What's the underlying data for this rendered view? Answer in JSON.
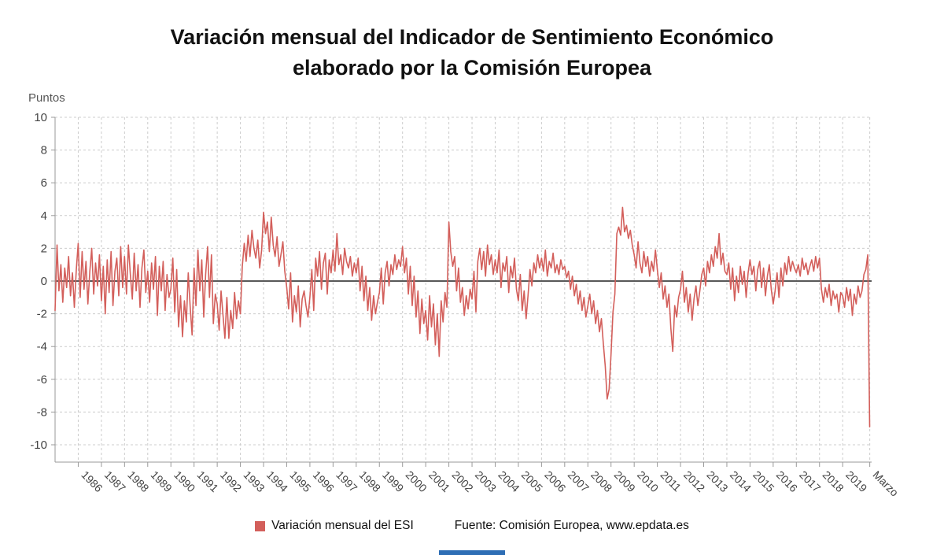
{
  "title": {
    "line1": "Variación mensual del Indicador de Sentimiento Económico",
    "line2": "elaborado por la Comisión Europea"
  },
  "y_axis_unit": "Puntos",
  "legend": {
    "series": "Variación mensual del ESI",
    "source": "Fuente: Comisión Europea, www.epdata.es"
  },
  "colors": {
    "line": "#d35f5b",
    "grid": "#cccccc",
    "axis": "#999999",
    "zero": "#222222",
    "text": "#444444",
    "title": "#111111",
    "bottom_bar": "#2e6eb5"
  },
  "chart_data": {
    "type": "line",
    "title": "Variación mensual del Indicador de Sentimiento Económico elaborado por la Comisión Europea",
    "xlabel": "",
    "ylabel": "Puntos",
    "ylim": [
      -10,
      10
    ],
    "y_ticks": [
      10,
      8,
      6,
      4,
      2,
      0,
      -2,
      -4,
      -6,
      -8,
      -10
    ],
    "x_domain": [
      1985,
      2020.25
    ],
    "grid": true,
    "legend_position": "bottom",
    "x_ticks": [
      {
        "pos": 1986,
        "label": "1986"
      },
      {
        "pos": 1987,
        "label": "1987"
      },
      {
        "pos": 1988,
        "label": "1988"
      },
      {
        "pos": 1989,
        "label": "1989"
      },
      {
        "pos": 1990,
        "label": "1990"
      },
      {
        "pos": 1991,
        "label": "1991"
      },
      {
        "pos": 1992,
        "label": "1992"
      },
      {
        "pos": 1993,
        "label": "1993"
      },
      {
        "pos": 1994,
        "label": "1994"
      },
      {
        "pos": 1995,
        "label": "1995"
      },
      {
        "pos": 1996,
        "label": "1996"
      },
      {
        "pos": 1997,
        "label": "1997"
      },
      {
        "pos": 1998,
        "label": "1998"
      },
      {
        "pos": 1999,
        "label": "1999"
      },
      {
        "pos": 2000,
        "label": "2000"
      },
      {
        "pos": 2001,
        "label": "2001"
      },
      {
        "pos": 2002,
        "label": "2002"
      },
      {
        "pos": 2003,
        "label": "2003"
      },
      {
        "pos": 2004,
        "label": "2004"
      },
      {
        "pos": 2005,
        "label": "2005"
      },
      {
        "pos": 2006,
        "label": "2006"
      },
      {
        "pos": 2007,
        "label": "2007"
      },
      {
        "pos": 2008,
        "label": "2008"
      },
      {
        "pos": 2009,
        "label": "2009"
      },
      {
        "pos": 2010,
        "label": "2010"
      },
      {
        "pos": 2011,
        "label": "2011"
      },
      {
        "pos": 2012,
        "label": "2012"
      },
      {
        "pos": 2013,
        "label": "2013"
      },
      {
        "pos": 2014,
        "label": "2014"
      },
      {
        "pos": 2015,
        "label": "2015"
      },
      {
        "pos": 2016,
        "label": "2016"
      },
      {
        "pos": 2017,
        "label": "2017"
      },
      {
        "pos": 2018,
        "label": "2018"
      },
      {
        "pos": 2019,
        "label": "2019"
      },
      {
        "pos": 2020.17,
        "label": "Marzo"
      }
    ],
    "series": [
      {
        "name": "Variación mensual del ESI",
        "start_year": 1985,
        "frequency": "monthly",
        "end_label": "Marzo 2020",
        "values": [
          -1.8,
          2.2,
          -0.6,
          1.0,
          -1.3,
          0.8,
          -0.4,
          1.5,
          -0.9,
          0.5,
          -1.6,
          0.7,
          2.3,
          -1.0,
          1.8,
          -0.5,
          1.2,
          -1.4,
          0.6,
          2.0,
          -0.8,
          1.1,
          -0.3,
          1.6,
          -1.2,
          0.9,
          -2.0,
          1.3,
          -0.7,
          1.8,
          -1.5,
          0.6,
          1.4,
          -0.9,
          2.1,
          -0.4,
          1.5,
          -0.8,
          2.2,
          0.4,
          -1.1,
          1.7,
          -0.6,
          1.0,
          -1.6,
          0.8,
          1.9,
          -0.7,
          0.6,
          -1.3,
          1.1,
          -0.5,
          1.5,
          -2.1,
          0.9,
          -0.6,
          1.2,
          -1.8,
          0.4,
          -1.0,
          -0.5,
          1.4,
          -1.9,
          0.7,
          -2.8,
          -0.9,
          -3.4,
          -1.2,
          -2.5,
          0.5,
          -1.6,
          -3.3,
          0.8,
          -1.5,
          1.9,
          -0.6,
          1.3,
          -2.2,
          0.4,
          2.1,
          -1.0,
          1.6,
          -2.6,
          -0.8,
          -1.4,
          -3.0,
          -0.6,
          -2.1,
          -3.5,
          -1.0,
          -3.5,
          -1.8,
          -2.9,
          -0.7,
          -2.3,
          -1.2,
          -2.0,
          0.9,
          2.3,
          1.2,
          2.8,
          1.5,
          3.1,
          2.0,
          1.4,
          2.5,
          0.8,
          1.9,
          4.2,
          2.9,
          3.6,
          1.8,
          3.9,
          2.2,
          1.5,
          2.7,
          0.9,
          1.6,
          2.4,
          0.6,
          -0.4,
          -1.7,
          0.5,
          -2.5,
          -0.9,
          -1.9,
          -0.3,
          -2.8,
          -1.1,
          -0.6,
          -1.5,
          -2.2,
          -1.0,
          0.7,
          -1.8,
          1.4,
          0.3,
          1.8,
          -0.5,
          1.1,
          1.7,
          -0.8,
          1.3,
          0.5,
          1.9,
          0.6,
          2.9,
          1.0,
          1.6,
          0.4,
          2.0,
          1.2,
          0.8,
          1.5,
          0.3,
          1.1,
          0.5,
          1.4,
          -0.6,
          0.9,
          -1.2,
          0.3,
          -1.8,
          -0.4,
          -2.4,
          -0.9,
          -2.0,
          -1.3,
          -0.7,
          0.8,
          -1.4,
          0.5,
          1.2,
          -0.3,
          1.0,
          0.4,
          1.6,
          0.7,
          1.3,
          0.9,
          2.1,
          0.5,
          1.4,
          -0.8,
          0.9,
          -1.5,
          0.3,
          -2.2,
          -0.6,
          -3.2,
          -1.1,
          -2.6,
          -1.8,
          -3.6,
          -0.9,
          -2.8,
          -1.4,
          -3.9,
          -2.0,
          -4.6,
          -1.2,
          -2.5,
          -0.7,
          -1.6,
          3.6,
          1.8,
          0.9,
          1.5,
          -0.6,
          0.8,
          -1.3,
          -0.4,
          -2.1,
          -0.9,
          -1.7,
          -0.5,
          -1.1,
          0.6,
          -1.9,
          1.2,
          2.0,
          0.7,
          1.8,
          0.3,
          2.2,
          1.0,
          1.6,
          0.4,
          1.3,
          0.5,
          1.9,
          -0.4,
          1.1,
          0.6,
          1.5,
          -0.7,
          0.9,
          0.2,
          1.4,
          -0.5,
          -1.2,
          0.4,
          -1.8,
          -0.6,
          -2.3,
          -0.9,
          0.7,
          -0.3,
          1.1,
          0.5,
          1.6,
          0.8,
          1.4,
          0.6,
          1.9,
          0.3,
          1.2,
          0.8,
          1.7,
          0.5,
          1.0,
          0.4,
          1.3,
          0.7,
          0.9,
          0.2,
          0.6,
          -0.5,
          0.3,
          -0.9,
          -0.2,
          -1.4,
          -0.6,
          -1.8,
          -1.0,
          -2.2,
          -1.5,
          -0.8,
          -2.0,
          -1.2,
          -2.6,
          -1.8,
          -3.1,
          -2.3,
          -3.8,
          -5.2,
          -7.2,
          -6.6,
          -4.5,
          -1.9,
          -0.8,
          2.9,
          3.3,
          2.8,
          4.5,
          3.0,
          3.4,
          2.6,
          3.1,
          2.2,
          1.6,
          0.8,
          2.4,
          1.1,
          0.5,
          1.8,
          0.9,
          1.5,
          0.3,
          1.2,
          0.6,
          1.9,
          0.7,
          -0.4,
          0.5,
          -1.1,
          -0.3,
          -1.6,
          -0.8,
          -2.9,
          -4.3,
          -1.5,
          -2.2,
          -1.0,
          -0.5,
          0.6,
          -1.3,
          -0.4,
          -1.9,
          -0.8,
          -2.4,
          -1.1,
          -0.3,
          -1.5,
          -0.6,
          0.4,
          0.8,
          -0.3,
          1.2,
          0.5,
          1.6,
          0.9,
          2.1,
          1.4,
          2.9,
          1.0,
          1.7,
          0.6,
          0.4,
          1.1,
          -0.5,
          0.8,
          -1.2,
          0.3,
          -0.7,
          0.9,
          -0.2,
          0.6,
          -1.0,
          0.5,
          1.3,
          0.4,
          0.9,
          -0.6,
          0.7,
          1.2,
          -0.4,
          0.8,
          -0.9,
          0.3,
          1.0,
          -0.5,
          -1.4,
          -0.6,
          0.5,
          -1.0,
          0.8,
          -0.3,
          1.1,
          0.4,
          1.5,
          0.6,
          1.2,
          0.8,
          0.5,
          1.0,
          0.3,
          1.4,
          0.7,
          1.1,
          0.4,
          0.9,
          1.3,
          0.6,
          1.5,
          0.8,
          1.4,
          -0.5,
          -1.3,
          -0.4,
          -1.0,
          -0.2,
          -1.5,
          -0.6,
          -1.1,
          -0.8,
          -1.9,
          -0.7,
          -0.9,
          -1.6,
          -0.4,
          -1.2,
          -0.5,
          -2.1,
          -0.8,
          -1.4,
          -0.3,
          -1.0,
          -0.6,
          0.4,
          0.7,
          1.6,
          -8.9
        ]
      }
    ]
  }
}
